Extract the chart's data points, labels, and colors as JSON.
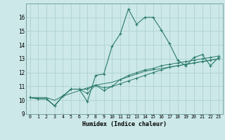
{
  "xlabel": "Humidex (Indice chaleur)",
  "bg_color": "#cce8e8",
  "grid_color": "#aacece",
  "line_color": "#2a7a6a",
  "xlim": [
    -0.5,
    23.5
  ],
  "ylim": [
    9,
    17
  ],
  "xtick_labels": [
    "0",
    "1",
    "2",
    "3",
    "4",
    "5",
    "6",
    "7",
    "8",
    "9",
    "10",
    "11",
    "12",
    "13",
    "14",
    "15",
    "16",
    "17",
    "18",
    "19",
    "20",
    "21",
    "22",
    "23"
  ],
  "ytick_labels": [
    "9",
    "10",
    "11",
    "12",
    "13",
    "14",
    "15",
    "16"
  ],
  "ytick_vals": [
    9,
    10,
    11,
    12,
    13,
    14,
    15,
    16
  ],
  "series": [
    [
      10.2,
      10.1,
      10.1,
      9.6,
      10.3,
      10.8,
      10.8,
      9.9,
      11.8,
      11.9,
      13.9,
      14.8,
      16.6,
      15.5,
      16.0,
      16.0,
      15.1,
      14.1,
      12.9,
      12.5,
      13.1,
      13.3,
      12.5,
      13.1
    ],
    [
      10.2,
      10.1,
      10.1,
      9.6,
      10.3,
      10.8,
      10.8,
      10.8,
      11.1,
      10.9,
      11.0,
      11.5,
      11.8,
      12.0,
      12.2,
      12.3,
      12.5,
      12.6,
      12.7,
      12.8,
      12.9,
      13.0,
      13.1,
      13.2
    ],
    [
      10.2,
      10.1,
      10.1,
      9.6,
      10.3,
      10.8,
      10.8,
      10.5,
      11.1,
      10.7,
      11.0,
      11.2,
      11.4,
      11.6,
      11.8,
      12.0,
      12.2,
      12.4,
      12.5,
      12.6,
      12.7,
      12.8,
      12.9,
      13.0
    ],
    [
      10.2,
      10.2,
      10.2,
      10.0,
      10.3,
      10.5,
      10.7,
      10.9,
      11.1,
      11.2,
      11.3,
      11.5,
      11.7,
      11.9,
      12.1,
      12.2,
      12.3,
      12.4,
      12.5,
      12.6,
      12.7,
      12.8,
      12.9,
      13.0
    ]
  ]
}
